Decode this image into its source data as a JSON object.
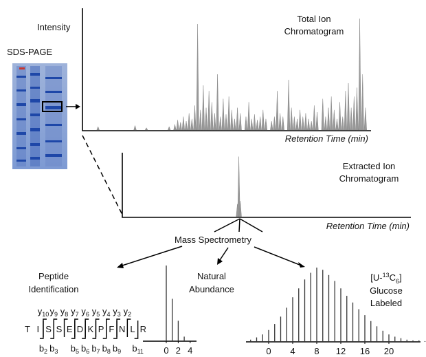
{
  "labels": {
    "intensity": "Intensity",
    "sds_page": "SDS-PAGE",
    "tic_title": [
      "Total Ion",
      "Chromatogram"
    ],
    "tic_x": "Retention Time (min)",
    "eic_title": [
      "Extracted Ion",
      "Chromatogram"
    ],
    "eic_x": "Retention Time (min)",
    "mass_spec": "Mass Spectrometry",
    "peptide_title": [
      "Peptide",
      "Identification"
    ],
    "natural_title": [
      "Natural",
      "Abundance"
    ],
    "labeled_title": {
      "line1": [
        "[U-",
        "13",
        "C",
        "6",
        "]"
      ],
      "line2": "Glucose",
      "line3": "Labeled"
    }
  },
  "tic_peaks": [
    [
      5,
      3
    ],
    [
      18,
      4
    ],
    [
      22,
      2
    ],
    [
      30,
      3
    ],
    [
      32,
      5
    ],
    [
      33,
      9
    ],
    [
      34,
      7
    ],
    [
      35,
      12
    ],
    [
      36,
      8
    ],
    [
      37,
      15
    ],
    [
      38,
      10
    ],
    [
      39,
      22
    ],
    [
      40,
      95
    ],
    [
      41,
      18
    ],
    [
      42,
      40
    ],
    [
      43,
      20
    ],
    [
      44,
      35
    ],
    [
      45,
      25
    ],
    [
      46,
      15
    ],
    [
      47,
      50
    ],
    [
      48,
      12
    ],
    [
      49,
      28
    ],
    [
      50,
      14
    ],
    [
      51,
      30
    ],
    [
      52,
      18
    ],
    [
      53,
      10
    ],
    [
      54,
      20
    ],
    [
      55,
      15
    ],
    [
      57,
      12
    ],
    [
      58,
      25
    ],
    [
      59,
      10
    ],
    [
      60,
      14
    ],
    [
      61,
      9
    ],
    [
      62,
      12
    ],
    [
      63,
      18
    ],
    [
      64,
      10
    ],
    [
      66,
      8
    ],
    [
      67,
      12
    ],
    [
      68,
      35
    ],
    [
      69,
      15
    ],
    [
      70,
      12
    ],
    [
      72,
      45
    ],
    [
      73,
      20
    ],
    [
      74,
      12
    ],
    [
      75,
      10
    ],
    [
      76,
      18
    ],
    [
      77,
      12
    ],
    [
      78,
      15
    ],
    [
      79,
      10
    ],
    [
      80,
      8
    ],
    [
      81,
      22
    ],
    [
      82,
      16
    ],
    [
      84,
      28
    ],
    [
      85,
      12
    ],
    [
      86,
      20
    ],
    [
      87,
      30
    ],
    [
      88,
      18
    ],
    [
      89,
      10
    ],
    [
      90,
      25
    ],
    [
      91,
      12
    ],
    [
      92,
      35
    ],
    [
      93,
      42
    ],
    [
      94,
      20
    ],
    [
      95,
      30
    ],
    [
      96,
      38
    ],
    [
      97,
      100
    ],
    [
      98,
      50
    ],
    [
      99,
      20
    ]
  ],
  "eic_peaks": [
    [
      40,
      95
    ],
    [
      39.5,
      20
    ],
    [
      40.5,
      25
    ]
  ],
  "peptide": {
    "sequence": [
      "T",
      "I",
      "S",
      "S",
      "E",
      "D",
      "K",
      "P",
      "F",
      "N",
      "L",
      "R"
    ],
    "y_ions": [
      {
        "ion": "y",
        "index": 10
      },
      {
        "ion": "y",
        "index": 9
      },
      {
        "ion": "y",
        "index": 8
      },
      {
        "ion": "y",
        "index": 7
      },
      {
        "ion": "y",
        "index": 6
      },
      {
        "ion": "y",
        "index": 5
      },
      {
        "ion": "y",
        "index": 4
      },
      {
        "ion": "y",
        "index": 3
      },
      {
        "ion": "y",
        "index": 2
      }
    ],
    "b_ions": [
      {
        "ion": "b",
        "index": 2
      },
      {
        "ion": "b",
        "index": 3
      },
      {
        "ion": "b",
        "index": 5
      },
      {
        "ion": "b",
        "index": 6
      },
      {
        "ion": "b",
        "index": 7
      },
      {
        "ion": "b",
        "index": 8
      },
      {
        "ion": "b",
        "index": 9
      },
      {
        "ion": "b",
        "index": 11
      }
    ]
  },
  "natural": {
    "xticks": [
      0,
      2,
      4
    ],
    "peaks": [
      [
        0,
        100
      ],
      [
        1,
        56
      ],
      [
        2,
        27
      ],
      [
        3,
        6
      ]
    ]
  },
  "labeled": {
    "xticks": [
      0,
      4,
      8,
      12,
      16,
      20
    ],
    "peaks": [
      [
        -3,
        3
      ],
      [
        -2,
        6
      ],
      [
        -1,
        10
      ],
      [
        0,
        16
      ],
      [
        1,
        24
      ],
      [
        2,
        34
      ],
      [
        3,
        46
      ],
      [
        4,
        60
      ],
      [
        5,
        72
      ],
      [
        6,
        84
      ],
      [
        7,
        93
      ],
      [
        8,
        100
      ],
      [
        9,
        97
      ],
      [
        10,
        90
      ],
      [
        11,
        82
      ],
      [
        12,
        72
      ],
      [
        13,
        62
      ],
      [
        14,
        53
      ],
      [
        15,
        44
      ],
      [
        16,
        36
      ],
      [
        17,
        28
      ],
      [
        18,
        21
      ],
      [
        19,
        15
      ],
      [
        20,
        10
      ],
      [
        21,
        7
      ],
      [
        22,
        5
      ],
      [
        23,
        3
      ],
      [
        24,
        2
      ],
      [
        25,
        2
      ],
      [
        26,
        1
      ]
    ]
  }
}
